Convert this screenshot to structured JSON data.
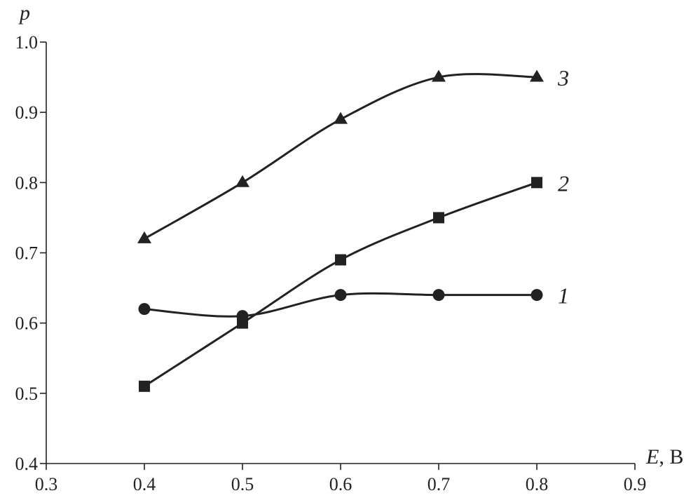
{
  "chart_data": {
    "type": "line",
    "title": "",
    "xlabel": "E",
    "xunit": ", В",
    "ylabel": "p",
    "xlim": [
      0.3,
      0.9
    ],
    "ylim": [
      0.4,
      1.0
    ],
    "xticks": [
      "0.3",
      "0.4",
      "0.5",
      "0.6",
      "0.7",
      "0.8",
      "0.9"
    ],
    "yticks": [
      "0.4",
      "0.5",
      "0.6",
      "0.7",
      "0.8",
      "0.9",
      "1.0"
    ],
    "grid": false,
    "x": [
      0.4,
      0.5,
      0.6,
      0.7,
      0.8
    ],
    "series": [
      {
        "name": "1",
        "marker": "circle",
        "values": [
          0.62,
          0.61,
          0.64,
          0.64,
          0.64
        ]
      },
      {
        "name": "2",
        "marker": "square",
        "values": [
          0.51,
          0.6,
          0.69,
          0.75,
          0.8
        ]
      },
      {
        "name": "3",
        "marker": "triangle",
        "values": [
          0.72,
          0.8,
          0.89,
          0.95,
          0.95
        ]
      }
    ]
  }
}
